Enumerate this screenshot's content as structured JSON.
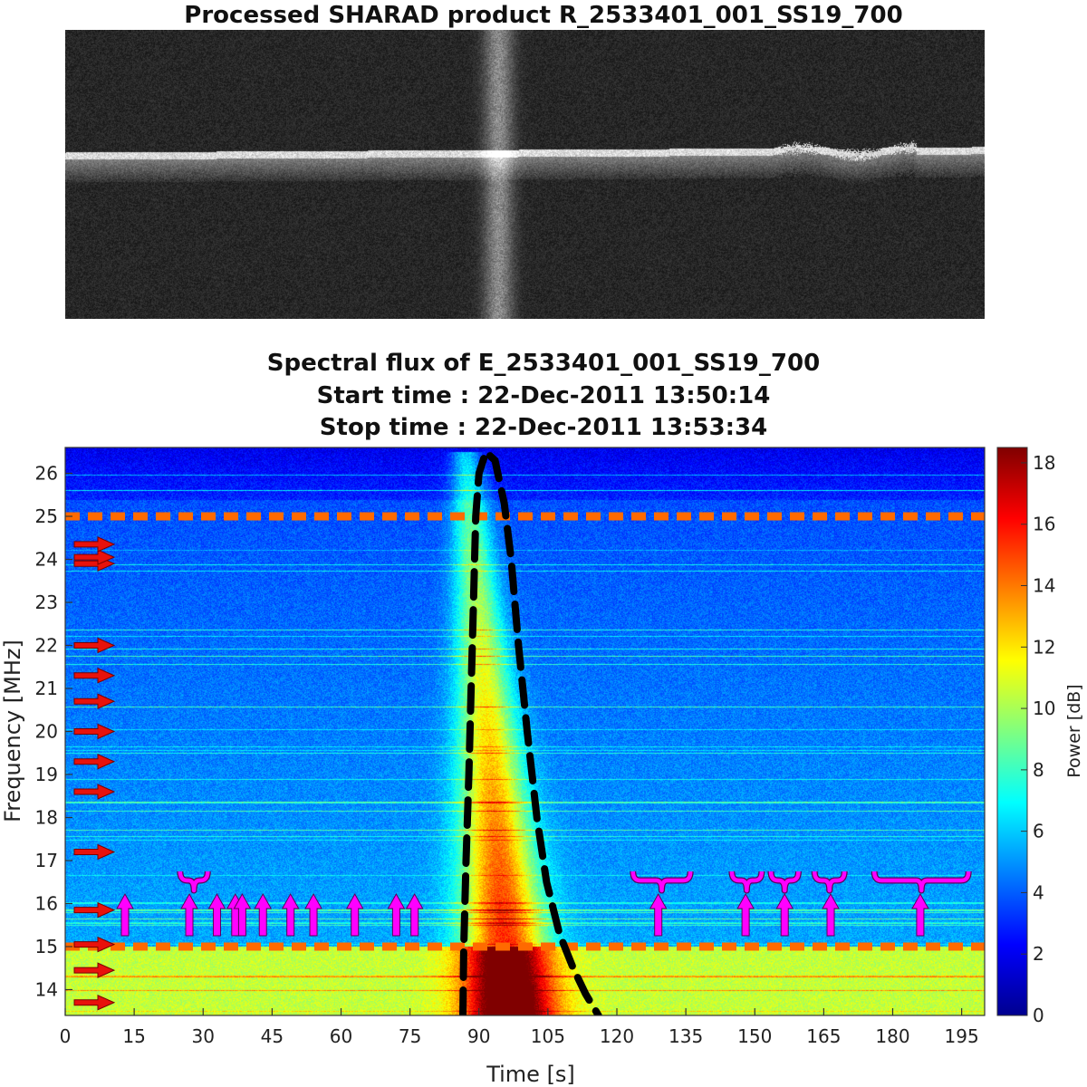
{
  "radargram": {
    "title": "Processed SHARAD product R_2533401_001_SS19_700"
  },
  "chart_data": {
    "type": "heatmap",
    "title_lines": [
      "Spectral flux of E_2533401_001_SS19_700",
      "Start time : 22-Dec-2011 13:50:14",
      "Stop time : 22-Dec-2011 13:53:34"
    ],
    "xlabel": "Time [s]",
    "ylabel": "Frequency [MHz]",
    "xlim": [
      0,
      200
    ],
    "ylim": [
      13.4,
      26.6
    ],
    "xticks": [
      0,
      15,
      30,
      45,
      60,
      75,
      90,
      105,
      120,
      135,
      150,
      165,
      180,
      195
    ],
    "yticks": [
      14,
      15,
      16,
      17,
      18,
      19,
      20,
      21,
      22,
      23,
      24,
      25,
      26
    ],
    "colorbar": {
      "label": "Power [dB]",
      "range": [
        0,
        18.5
      ],
      "ticks": [
        0,
        2,
        4,
        6,
        8,
        10,
        12,
        14,
        16,
        18
      ]
    },
    "dashed_lines_mhz": [
      25.0,
      15.0
    ],
    "interference_arrows_mhz": [
      15.85,
      13.7,
      14.45,
      15.05,
      17.2,
      18.6,
      19.3,
      20.0,
      20.7,
      21.3,
      22.0,
      23.9,
      24.05,
      24.35
    ],
    "up_arrows_s": [
      13,
      27,
      33,
      37,
      38.5,
      43,
      49,
      54,
      63,
      72,
      76,
      129,
      148,
      156.5,
      166.5,
      186
    ],
    "braces": [
      {
        "x0": 25,
        "x1": 31
      },
      {
        "x0": 123.5,
        "x1": 136
      },
      {
        "x0": 145,
        "x1": 151.5
      },
      {
        "x0": 153.5,
        "x1": 159.5
      },
      {
        "x0": 163,
        "x1": 169.5
      },
      {
        "x0": 176,
        "x1": 196.5
      }
    ],
    "ionosphere_curve": [
      [
        86.5,
        13.4
      ],
      [
        86.7,
        15.0
      ],
      [
        87.2,
        17.0
      ],
      [
        87.8,
        19.0
      ],
      [
        88.3,
        21.0
      ],
      [
        88.8,
        23.0
      ],
      [
        89.3,
        25.0
      ],
      [
        90.0,
        26.0
      ],
      [
        91.5,
        26.5
      ],
      [
        93.5,
        26.3
      ],
      [
        95.5,
        25.3
      ],
      [
        97.0,
        24.0
      ],
      [
        98.6,
        22.0
      ],
      [
        100.5,
        20.0
      ],
      [
        102.6,
        18.0
      ],
      [
        104.7,
        16.5
      ],
      [
        107.5,
        15.3
      ],
      [
        110.5,
        14.5
      ],
      [
        113.2,
        13.9
      ],
      [
        116.0,
        13.4
      ]
    ],
    "colors": {
      "interference_arrow": "#e8120c",
      "up_arrow": "#ff00ff",
      "dashed_line": "#ff6a00",
      "curve": "#000000"
    }
  }
}
